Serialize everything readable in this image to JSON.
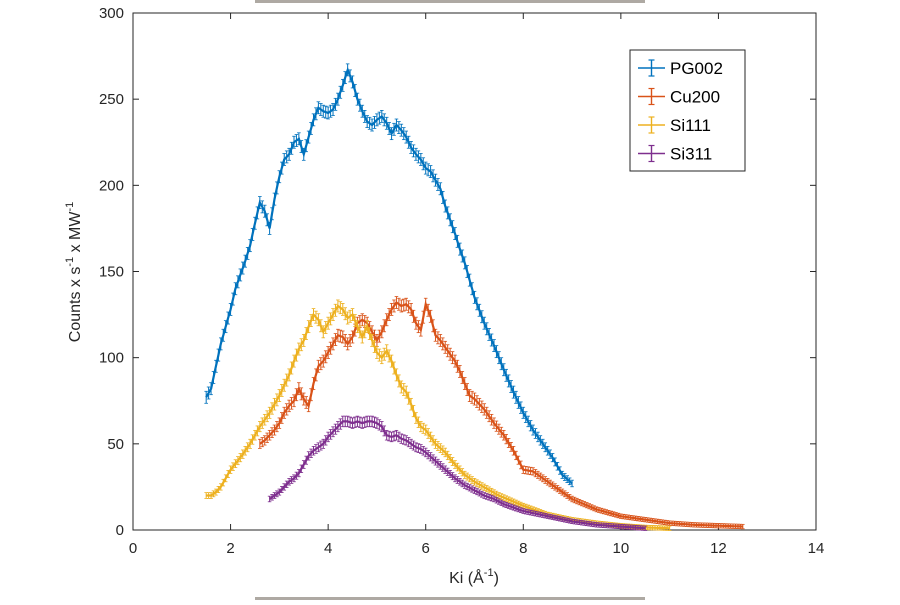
{
  "chart_data": {
    "type": "line",
    "title": "",
    "xlabel": "Ki (Å",
    "xlabel_sup": "-1",
    "xlabel_tail": ")",
    "ylabel_parts": [
      "Counts x s",
      "-1",
      " x MW",
      "-1"
    ],
    "xlim": [
      0,
      14
    ],
    "ylim": [
      0,
      300
    ],
    "xticks": [
      0,
      2,
      4,
      6,
      8,
      10,
      12,
      14
    ],
    "yticks": [
      0,
      50,
      100,
      150,
      200,
      250,
      300
    ],
    "grid": false,
    "legend_position": "top-right",
    "error_bars": true,
    "series": [
      {
        "name": "PG002",
        "color": "#0072BD",
        "points": [
          [
            1.5,
            77
          ],
          [
            1.6,
            82
          ],
          [
            1.7,
            95
          ],
          [
            1.8,
            108
          ],
          [
            1.9,
            118
          ],
          [
            2.0,
            128
          ],
          [
            2.1,
            140
          ],
          [
            2.2,
            148
          ],
          [
            2.3,
            156
          ],
          [
            2.4,
            165
          ],
          [
            2.5,
            178
          ],
          [
            2.6,
            190
          ],
          [
            2.7,
            185
          ],
          [
            2.8,
            175
          ],
          [
            2.9,
            192
          ],
          [
            3.0,
            205
          ],
          [
            3.1,
            215
          ],
          [
            3.2,
            218
          ],
          [
            3.3,
            225
          ],
          [
            3.4,
            227
          ],
          [
            3.5,
            218
          ],
          [
            3.6,
            228
          ],
          [
            3.7,
            238
          ],
          [
            3.8,
            245
          ],
          [
            3.9,
            243
          ],
          [
            4.0,
            242
          ],
          [
            4.1,
            244
          ],
          [
            4.2,
            250
          ],
          [
            4.3,
            258
          ],
          [
            4.4,
            267
          ],
          [
            4.5,
            260
          ],
          [
            4.6,
            250
          ],
          [
            4.7,
            243
          ],
          [
            4.8,
            237
          ],
          [
            4.9,
            235
          ],
          [
            5.0,
            238
          ],
          [
            5.1,
            240
          ],
          [
            5.2,
            236
          ],
          [
            5.3,
            230
          ],
          [
            5.4,
            235
          ],
          [
            5.5,
            232
          ],
          [
            5.6,
            228
          ],
          [
            5.7,
            222
          ],
          [
            5.8,
            218
          ],
          [
            5.9,
            215
          ],
          [
            6.0,
            210
          ],
          [
            6.1,
            208
          ],
          [
            6.2,
            203
          ],
          [
            6.3,
            198
          ],
          [
            6.4,
            188
          ],
          [
            6.5,
            180
          ],
          [
            6.6,
            172
          ],
          [
            6.7,
            163
          ],
          [
            6.8,
            155
          ],
          [
            6.9,
            145
          ],
          [
            7.0,
            135
          ],
          [
            7.2,
            120
          ],
          [
            7.4,
            107
          ],
          [
            7.6,
            93
          ],
          [
            7.8,
            80
          ],
          [
            8.0,
            68
          ],
          [
            8.2,
            58
          ],
          [
            8.4,
            50
          ],
          [
            8.6,
            42
          ],
          [
            8.8,
            32
          ],
          [
            9.0,
            27
          ]
        ]
      },
      {
        "name": "Cu200",
        "color": "#D95319",
        "points": [
          [
            2.6,
            50
          ],
          [
            2.7,
            52
          ],
          [
            2.8,
            55
          ],
          [
            2.9,
            58
          ],
          [
            3.0,
            62
          ],
          [
            3.1,
            68
          ],
          [
            3.2,
            72
          ],
          [
            3.3,
            75
          ],
          [
            3.4,
            82
          ],
          [
            3.5,
            76
          ],
          [
            3.6,
            72
          ],
          [
            3.7,
            85
          ],
          [
            3.8,
            95
          ],
          [
            3.9,
            98
          ],
          [
            4.0,
            103
          ],
          [
            4.1,
            108
          ],
          [
            4.2,
            113
          ],
          [
            4.3,
            112
          ],
          [
            4.4,
            108
          ],
          [
            4.5,
            112
          ],
          [
            4.6,
            120
          ],
          [
            4.7,
            122
          ],
          [
            4.8,
            120
          ],
          [
            4.9,
            115
          ],
          [
            5.0,
            110
          ],
          [
            5.1,
            115
          ],
          [
            5.2,
            122
          ],
          [
            5.3,
            128
          ],
          [
            5.4,
            132
          ],
          [
            5.5,
            130
          ],
          [
            5.6,
            131
          ],
          [
            5.7,
            128
          ],
          [
            5.8,
            120
          ],
          [
            5.9,
            116
          ],
          [
            6.0,
            131
          ],
          [
            6.1,
            124
          ],
          [
            6.2,
            113
          ],
          [
            6.3,
            110
          ],
          [
            6.4,
            106
          ],
          [
            6.5,
            102
          ],
          [
            6.6,
            98
          ],
          [
            6.7,
            92
          ],
          [
            6.8,
            85
          ],
          [
            6.9,
            78
          ],
          [
            7.0,
            76
          ],
          [
            7.2,
            70
          ],
          [
            7.4,
            62
          ],
          [
            7.6,
            55
          ],
          [
            7.8,
            46
          ],
          [
            8.0,
            35
          ],
          [
            8.2,
            34
          ],
          [
            8.4,
            30
          ],
          [
            8.6,
            26
          ],
          [
            8.8,
            22
          ],
          [
            9.0,
            18
          ],
          [
            9.5,
            12
          ],
          [
            10.0,
            8
          ],
          [
            10.5,
            6
          ],
          [
            11.0,
            4
          ],
          [
            11.5,
            3
          ],
          [
            12.0,
            2.5
          ],
          [
            12.5,
            2
          ]
        ]
      },
      {
        "name": "Si111",
        "color": "#EDB120",
        "points": [
          [
            1.5,
            20
          ],
          [
            1.6,
            20
          ],
          [
            1.7,
            22
          ],
          [
            1.8,
            25
          ],
          [
            1.9,
            30
          ],
          [
            2.0,
            35
          ],
          [
            2.2,
            42
          ],
          [
            2.4,
            50
          ],
          [
            2.6,
            60
          ],
          [
            2.8,
            68
          ],
          [
            3.0,
            78
          ],
          [
            3.2,
            90
          ],
          [
            3.3,
            98
          ],
          [
            3.4,
            105
          ],
          [
            3.5,
            110
          ],
          [
            3.6,
            118
          ],
          [
            3.7,
            125
          ],
          [
            3.8,
            122
          ],
          [
            3.9,
            115
          ],
          [
            4.0,
            120
          ],
          [
            4.1,
            125
          ],
          [
            4.2,
            130
          ],
          [
            4.3,
            128
          ],
          [
            4.4,
            123
          ],
          [
            4.5,
            125
          ],
          [
            4.6,
            118
          ],
          [
            4.7,
            112
          ],
          [
            4.8,
            118
          ],
          [
            4.9,
            110
          ],
          [
            5.0,
            103
          ],
          [
            5.1,
            100
          ],
          [
            5.2,
            104
          ],
          [
            5.3,
            98
          ],
          [
            5.4,
            90
          ],
          [
            5.5,
            83
          ],
          [
            5.6,
            80
          ],
          [
            5.7,
            73
          ],
          [
            5.8,
            65
          ],
          [
            5.9,
            60
          ],
          [
            6.0,
            58
          ],
          [
            6.2,
            50
          ],
          [
            6.4,
            45
          ],
          [
            6.6,
            38
          ],
          [
            6.8,
            32
          ],
          [
            7.0,
            28
          ],
          [
            7.5,
            20
          ],
          [
            8.0,
            14
          ],
          [
            8.5,
            9
          ],
          [
            9.0,
            6
          ],
          [
            9.5,
            4
          ],
          [
            10.0,
            2.5
          ],
          [
            10.5,
            1.5
          ],
          [
            11.0,
            1
          ]
        ]
      },
      {
        "name": "Si311",
        "color": "#7E2F8E",
        "points": [
          [
            2.8,
            18
          ],
          [
            2.9,
            20
          ],
          [
            3.0,
            22
          ],
          [
            3.1,
            25
          ],
          [
            3.2,
            28
          ],
          [
            3.3,
            30
          ],
          [
            3.4,
            33
          ],
          [
            3.5,
            38
          ],
          [
            3.6,
            43
          ],
          [
            3.7,
            46
          ],
          [
            3.8,
            48
          ],
          [
            3.9,
            50
          ],
          [
            4.0,
            54
          ],
          [
            4.1,
            57
          ],
          [
            4.2,
            60
          ],
          [
            4.3,
            63
          ],
          [
            4.4,
            63
          ],
          [
            4.5,
            62
          ],
          [
            4.6,
            63
          ],
          [
            4.7,
            62
          ],
          [
            4.8,
            63
          ],
          [
            4.9,
            63
          ],
          [
            5.0,
            62
          ],
          [
            5.1,
            60
          ],
          [
            5.2,
            55
          ],
          [
            5.3,
            54
          ],
          [
            5.4,
            55
          ],
          [
            5.5,
            53
          ],
          [
            5.6,
            52
          ],
          [
            5.7,
            50
          ],
          [
            5.8,
            48
          ],
          [
            5.9,
            47
          ],
          [
            6.0,
            45
          ],
          [
            6.2,
            40
          ],
          [
            6.4,
            35
          ],
          [
            6.6,
            30
          ],
          [
            6.8,
            26
          ],
          [
            7.0,
            23
          ],
          [
            7.2,
            20
          ],
          [
            7.4,
            18
          ],
          [
            7.6,
            15
          ],
          [
            7.8,
            13
          ],
          [
            8.0,
            11
          ],
          [
            8.5,
            8
          ],
          [
            9.0,
            5
          ],
          [
            9.5,
            3
          ],
          [
            10.0,
            2
          ],
          [
            10.5,
            1
          ]
        ]
      }
    ]
  }
}
